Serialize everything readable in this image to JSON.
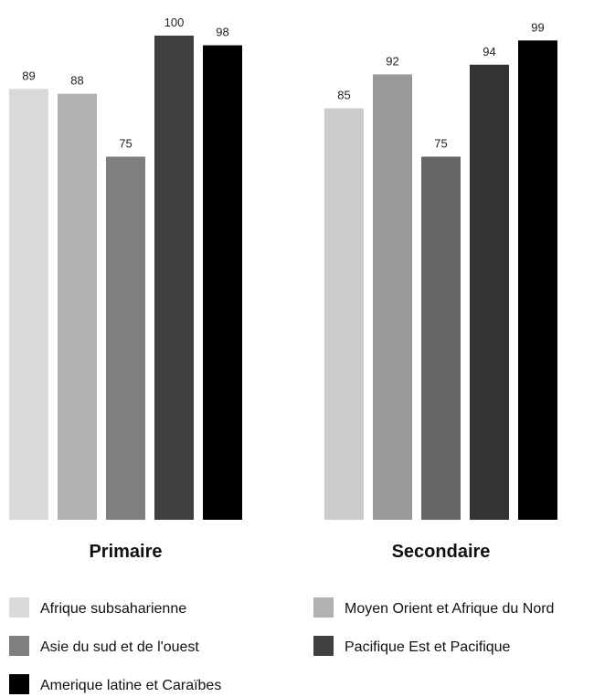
{
  "chart_data": {
    "type": "bar",
    "categories": [
      "Primaire",
      "Secondaire"
    ],
    "series": [
      {
        "name": "Afrique subsaharienne",
        "color": "#d9d9d9",
        "values": [
          89,
          85
        ]
      },
      {
        "name": "Moyen Orient et Afrique du Nord",
        "color": "#b1b1b1",
        "values": [
          88,
          92
        ]
      },
      {
        "name": "Asie du sud et de l'ouest",
        "color": "#7f7f7f",
        "values": [
          75,
          75
        ]
      },
      {
        "name": "Pacifique Est et Pacifique",
        "color": "#404040",
        "values": [
          100,
          94
        ]
      },
      {
        "name": "Amerique latine et Caraïbes",
        "color": "#000000",
        "values": [
          98,
          99
        ]
      }
    ],
    "group_colors": [
      [
        "#d9d9d9",
        "#b1b1b1",
        "#7f7f7f",
        "#404040",
        "#000000"
      ],
      [
        "#cccccc",
        "#999999",
        "#666666",
        "#333333",
        "#000000"
      ]
    ],
    "ylim": [
      0,
      100
    ],
    "legend_position": "bottom",
    "grid": false
  }
}
